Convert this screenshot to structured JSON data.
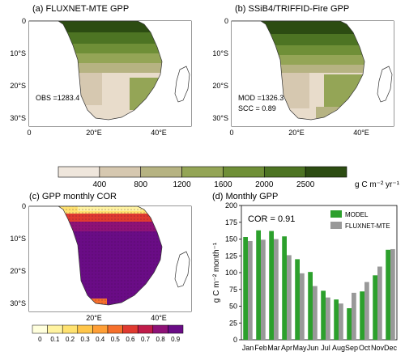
{
  "panels": {
    "a": {
      "title": "(a) FLUXNET-MTE GPP",
      "stats": [
        "OBS =1283.4"
      ]
    },
    "b": {
      "title": "(b) SSiB4/TRIFFID-Fire GPP",
      "stats": [
        "MOD =1326.3",
        "SCC = 0.89"
      ]
    },
    "c": {
      "title": "(c) GPP monthly COR"
    },
    "d": {
      "title": "(d) Monthly GPP"
    }
  },
  "map_axes": {
    "y_ticks": [
      "0",
      "10°S",
      "20°S",
      "30°S"
    ],
    "x_ticks": [
      "0",
      "20°E",
      "40°E"
    ]
  },
  "gpp_colorbar": {
    "labels": [
      "400",
      "800",
      "1200",
      "1600",
      "2000",
      "2500"
    ],
    "unit": "g C m⁻² yr⁻¹",
    "colors": [
      "#efe6dc",
      "#d6c8b0",
      "#b6b382",
      "#94a556",
      "#6f8f37",
      "#4d7423",
      "#2c4c12"
    ]
  },
  "cor_colorbar": {
    "labels": [
      "0",
      "0.1",
      "0.2",
      "0.3",
      "0.4",
      "0.5",
      "0.6",
      "0.7",
      "0.8",
      "0.9"
    ],
    "colors": [
      "#ffffdd",
      "#fff3a0",
      "#ffe270",
      "#ffc64a",
      "#ff9f36",
      "#f6702c",
      "#e03a30",
      "#c01c4a",
      "#8e1277",
      "#6a0c86"
    ]
  },
  "chart_data": {
    "type": "bar",
    "title": "(d) Monthly GPP",
    "annotation": "COR = 0.91",
    "categories": [
      "Jan",
      "Feb",
      "Mar",
      "Apr",
      "May",
      "Jun",
      "Jul",
      "Aug",
      "Sep",
      "Oct",
      "Nov",
      "Dec"
    ],
    "series": [
      {
        "name": "MODEL",
        "color": "#2ca02c",
        "values": [
          153,
          163,
          162,
          154,
          120,
          101,
          73,
          60,
          47,
          72,
          96,
          134
        ]
      },
      {
        "name": "FLUXNET-MTE",
        "color": "#999999",
        "values": [
          147,
          149,
          150,
          126,
          99,
          80,
          63,
          54,
          70,
          86,
          109,
          135
        ]
      }
    ],
    "ylabel": "g C m⁻² month⁻¹",
    "ylim": [
      0,
      200
    ],
    "yticks": [
      0,
      25,
      50,
      75,
      100,
      125,
      150,
      175,
      200
    ],
    "legend_position": "top-right"
  }
}
